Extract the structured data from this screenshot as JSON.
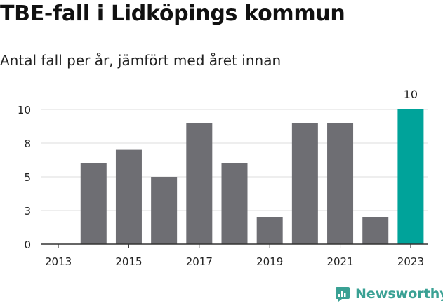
{
  "title": "TBE-fall i Lidköpings kommun",
  "subtitle": "Antal fall per år, jämfört med året innan",
  "brand": {
    "name": "Newsworthy",
    "icon": "newsworthy-logo-icon"
  },
  "colors": {
    "bar": "#6e6e73",
    "highlight": "#00a39a",
    "grid": "#dddddd",
    "axis": "#333333",
    "text": "#222222"
  },
  "chart_data": {
    "type": "bar",
    "categories": [
      "2013",
      "2014",
      "2015",
      "2016",
      "2017",
      "2018",
      "2019",
      "2020",
      "2021",
      "2022",
      "2023"
    ],
    "values": [
      0,
      6,
      7,
      5,
      9,
      6,
      2,
      9,
      9,
      2,
      10
    ],
    "highlight_index": 10,
    "data_labels": [
      {
        "index": 10,
        "text": "10"
      }
    ],
    "y_ticks": [
      0,
      3,
      5,
      8,
      10
    ],
    "y_tick_values": [
      0,
      2.5,
      5,
      7.5,
      10
    ],
    "x_tick_labels": [
      "2013",
      "2015",
      "2017",
      "2019",
      "2021",
      "2023"
    ],
    "ylim": [
      0,
      10
    ],
    "grid": true,
    "xlabel": "",
    "ylabel": ""
  }
}
